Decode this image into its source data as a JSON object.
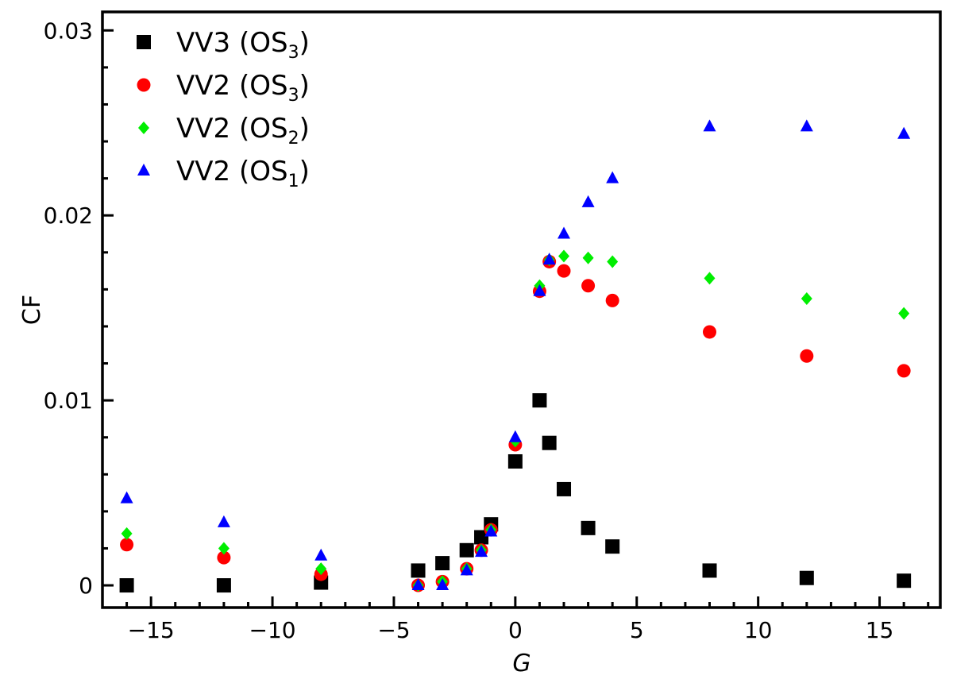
{
  "chart_data": {
    "type": "scatter",
    "xlabel": "G",
    "ylabel": "CF",
    "xlim": [
      -17,
      17.5
    ],
    "ylim": [
      -0.0012,
      0.031
    ],
    "x_ticks": [
      -15,
      -10,
      -5,
      0,
      5,
      10,
      15
    ],
    "x_tick_labels": [
      "−15",
      "−10",
      "−5",
      "0",
      "5",
      "10",
      "15"
    ],
    "y_ticks": [
      0,
      0.01,
      0.02,
      0.03
    ],
    "y_tick_labels": [
      "0",
      "0.01",
      "0.02",
      "0.03"
    ],
    "legend_position": "top-left",
    "series": [
      {
        "key": "vv3-os3",
        "name": "VV3 (OS3)",
        "label_main": "VV3 (OS",
        "label_sub": "3",
        "label_end": ")",
        "marker": "square",
        "color": "#000000",
        "points": [
          [
            -16,
            0.0
          ],
          [
            -12,
            0.0
          ],
          [
            -8,
            0.00015
          ],
          [
            -4,
            0.0008
          ],
          [
            -3,
            0.0012
          ],
          [
            -2,
            0.0019
          ],
          [
            -1.4,
            0.0026
          ],
          [
            -1,
            0.0033
          ],
          [
            0,
            0.0067
          ],
          [
            1,
            0.01
          ],
          [
            1.4,
            0.0077
          ],
          [
            2,
            0.0052
          ],
          [
            3,
            0.0031
          ],
          [
            4,
            0.0021
          ],
          [
            8,
            0.0008
          ],
          [
            12,
            0.0004
          ],
          [
            16,
            0.00025
          ]
        ]
      },
      {
        "key": "vv2-os3",
        "name": "VV2 (OS3)",
        "label_main": "VV2 (OS",
        "label_sub": "3",
        "label_end": ")",
        "marker": "circle",
        "color": "#ff0000",
        "points": [
          [
            -16,
            0.0022
          ],
          [
            -12,
            0.0015
          ],
          [
            -8,
            0.0006
          ],
          [
            -4,
            0.0
          ],
          [
            -3,
            0.0002
          ],
          [
            -2,
            0.0009
          ],
          [
            -1.4,
            0.0019
          ],
          [
            -1,
            0.003
          ],
          [
            0,
            0.0076
          ],
          [
            1,
            0.0159
          ],
          [
            1.4,
            0.0175
          ],
          [
            2,
            0.017
          ],
          [
            3,
            0.0162
          ],
          [
            4,
            0.0154
          ],
          [
            8,
            0.0137
          ],
          [
            12,
            0.0124
          ],
          [
            16,
            0.0116
          ]
        ]
      },
      {
        "key": "vv2-os2",
        "name": "VV2 (OS2)",
        "label_main": "VV2 (OS",
        "label_sub": "2",
        "label_end": ")",
        "marker": "diamond",
        "color": "#00ee00",
        "points": [
          [
            -16,
            0.0028
          ],
          [
            -12,
            0.002
          ],
          [
            -8,
            0.0009
          ],
          [
            -4,
            0.0
          ],
          [
            -3,
            0.0002
          ],
          [
            -2,
            0.0009
          ],
          [
            -1.4,
            0.0019
          ],
          [
            -1,
            0.003
          ],
          [
            0,
            0.0078
          ],
          [
            1,
            0.0162
          ],
          [
            1.4,
            0.0176
          ],
          [
            2,
            0.0178
          ],
          [
            3,
            0.0177
          ],
          [
            4,
            0.0175
          ],
          [
            8,
            0.0166
          ],
          [
            12,
            0.0155
          ],
          [
            16,
            0.0147
          ]
        ]
      },
      {
        "key": "vv2-os1",
        "name": "VV2 (OS1)",
        "label_main": "VV2 (OS",
        "label_sub": "1",
        "label_end": ")",
        "marker": "triangle",
        "color": "#0000ff",
        "points": [
          [
            -16,
            0.0047
          ],
          [
            -12,
            0.0034
          ],
          [
            -8,
            0.0016
          ],
          [
            -4,
            0.0
          ],
          [
            -3,
            0.0
          ],
          [
            -2,
            0.0008
          ],
          [
            -1.4,
            0.0018
          ],
          [
            -1,
            0.0029
          ],
          [
            0,
            0.008
          ],
          [
            1,
            0.0159
          ],
          [
            1.4,
            0.0176
          ],
          [
            2,
            0.019
          ],
          [
            3,
            0.0207
          ],
          [
            4,
            0.022
          ],
          [
            8,
            0.0248
          ],
          [
            12,
            0.0248
          ],
          [
            16,
            0.0244
          ]
        ]
      }
    ]
  }
}
